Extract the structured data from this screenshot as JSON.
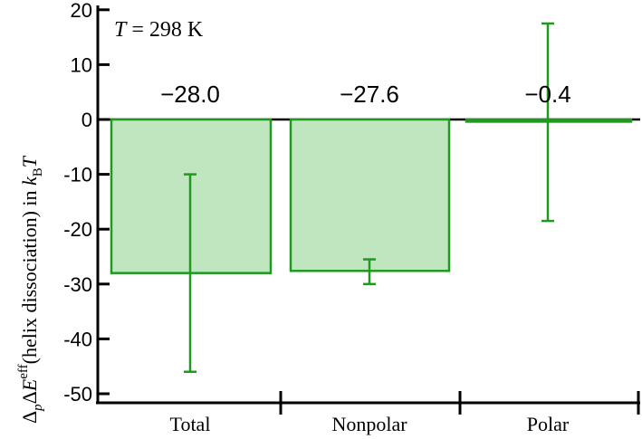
{
  "chart_data": {
    "type": "bar",
    "categories": [
      "Total",
      "Nonpolar",
      "Polar"
    ],
    "values": [
      -28.0,
      -27.6,
      -0.4
    ],
    "value_labels": [
      "−28.0",
      "−27.6",
      "−0.4"
    ],
    "error_bars": [
      {
        "low": -46,
        "high": -10
      },
      {
        "low": -30,
        "high": -25.5
      },
      {
        "low": -18.5,
        "high": 17.5
      }
    ],
    "ylabel": {
      "delta": "Δ",
      "sub_p": "p",
      "delta2": "Δ",
      "E": "E",
      "sup_eff": "eff",
      "paren": "(helix dissociation)  in ",
      "k": "k",
      "sub_B": "B",
      "T": "T"
    },
    "annotation": {
      "T": "T",
      "rest": " = 298 K"
    },
    "ylim": [
      -50,
      20
    ],
    "yticks": [
      20,
      10,
      0,
      -10,
      -20,
      -30,
      -40,
      -50
    ],
    "ytick_labels": [
      "20",
      "10",
      "0",
      "-10",
      "-20",
      "-30",
      "-40",
      "-50"
    ],
    "colors": {
      "bar_fill": "#c0e6c0",
      "bar_edge": "#1f9a1f",
      "error": "#1f9a1f",
      "axis": "#000000"
    },
    "legend": "none",
    "grid": false
  }
}
